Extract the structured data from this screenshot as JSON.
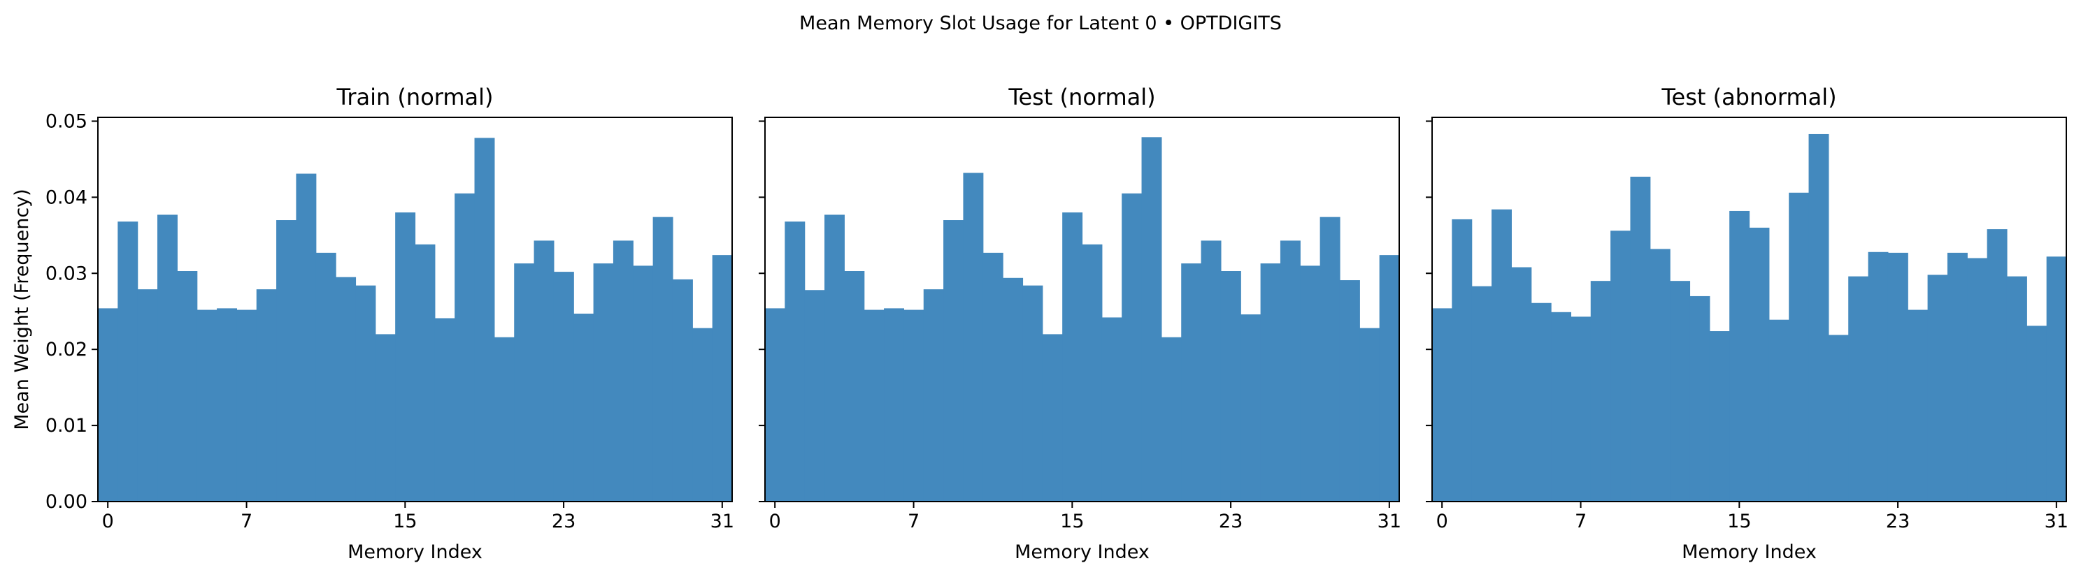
{
  "figure": {
    "suptitle": "Mean Memory Slot Usage for Latent 0 • OPTDIGITS",
    "bar_color": "#4389be"
  },
  "chart_data": [
    {
      "type": "bar",
      "title": "Train (normal)",
      "xlabel": "Memory Index",
      "ylabel": "Mean Weight (Frequency)",
      "ylim": [
        0,
        0.0505
      ],
      "xticks": [
        0,
        7,
        15,
        23,
        31
      ],
      "yticks": [
        "0.00",
        "0.01",
        "0.02",
        "0.03",
        "0.04",
        "0.05"
      ],
      "values": [
        0.0254,
        0.0368,
        0.0279,
        0.0377,
        0.0303,
        0.0252,
        0.0254,
        0.0252,
        0.0279,
        0.037,
        0.0431,
        0.0327,
        0.0295,
        0.0284,
        0.022,
        0.038,
        0.0338,
        0.0241,
        0.0405,
        0.0478,
        0.0216,
        0.0313,
        0.0343,
        0.0302,
        0.0247,
        0.0313,
        0.0343,
        0.031,
        0.0374,
        0.0292,
        0.0228,
        0.0324
      ]
    },
    {
      "type": "bar",
      "title": "Test (normal)",
      "xlabel": "Memory Index",
      "ylabel": "",
      "ylim": [
        0,
        0.0505
      ],
      "xticks": [
        0,
        7,
        15,
        23,
        31
      ],
      "yticks": [],
      "values": [
        0.0254,
        0.0368,
        0.0278,
        0.0377,
        0.0303,
        0.0252,
        0.0254,
        0.0252,
        0.0279,
        0.037,
        0.0432,
        0.0327,
        0.0294,
        0.0284,
        0.022,
        0.038,
        0.0338,
        0.0242,
        0.0405,
        0.0479,
        0.0216,
        0.0313,
        0.0343,
        0.0303,
        0.0246,
        0.0313,
        0.0343,
        0.031,
        0.0374,
        0.0291,
        0.0228,
        0.0324
      ]
    },
    {
      "type": "bar",
      "title": "Test (abnormal)",
      "xlabel": "Memory Index",
      "ylabel": "",
      "ylim": [
        0,
        0.0505
      ],
      "xticks": [
        0,
        7,
        15,
        23,
        31
      ],
      "yticks": [],
      "values": [
        0.0254,
        0.0371,
        0.0283,
        0.0384,
        0.0308,
        0.0261,
        0.0249,
        0.0243,
        0.029,
        0.0356,
        0.0427,
        0.0332,
        0.029,
        0.027,
        0.0224,
        0.0382,
        0.036,
        0.0239,
        0.0406,
        0.0483,
        0.0219,
        0.0296,
        0.0328,
        0.0327,
        0.0252,
        0.0298,
        0.0327,
        0.032,
        0.0358,
        0.0296,
        0.0231,
        0.0322
      ]
    }
  ]
}
